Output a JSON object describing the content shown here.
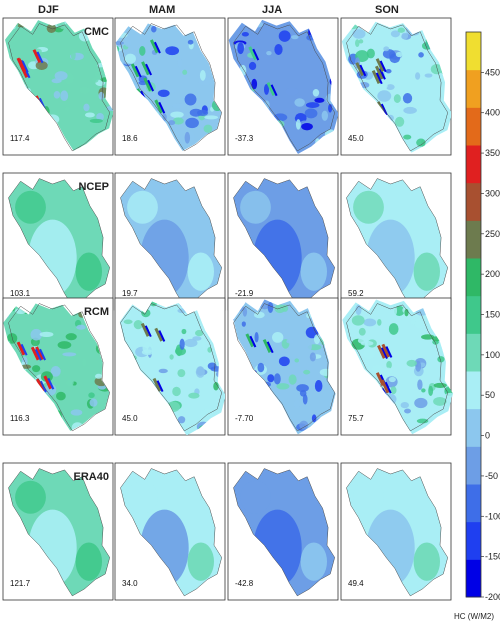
{
  "chart_data": {
    "type": "heatmap",
    "seasons": [
      "DJF",
      "MAM",
      "JJA",
      "SON"
    ],
    "datasets": [
      "CMC",
      "NCEP",
      "RCM",
      "ERA40"
    ],
    "values": [
      [
        "117.4",
        "18.6",
        "-37.3",
        "45.0"
      ],
      [
        "103.1",
        "19.7",
        "-21.9",
        "59.2"
      ],
      [
        "116.3",
        "45.0",
        "-7.70",
        "75.7"
      ],
      [
        "121.7",
        "34.0",
        "-42.8",
        "49.4"
      ]
    ],
    "colorbar": {
      "ticks": [
        "450",
        "400",
        "350",
        "300",
        "250",
        "200",
        "150",
        "100",
        "50",
        "0",
        "-50",
        "-100",
        "-150",
        "-200"
      ],
      "unit_label": "HC (W/M2)",
      "range": [
        -200,
        500
      ],
      "colors": [
        "#0000e6",
        "#1f3ff0",
        "#3e6ee8",
        "#6d9ee6",
        "#8cc7ee",
        "#a9eef5",
        "#6ed9b7",
        "#3fc88b",
        "#2fb866",
        "#6d7b4e",
        "#a85030",
        "#e02020",
        "#e36a1a",
        "#f0a020",
        "#f0de30"
      ]
    }
  }
}
